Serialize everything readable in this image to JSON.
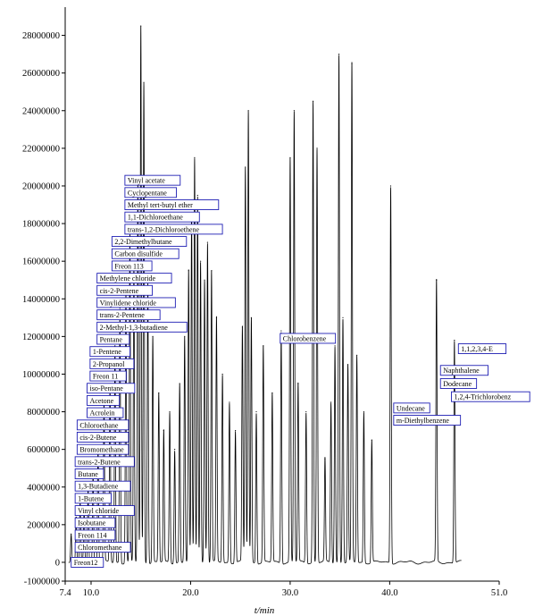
{
  "chart_data": {
    "type": "line",
    "title": "",
    "xlabel": "t/min",
    "ylabel": "",
    "xlim": [
      7.4,
      51.0
    ],
    "ylim": [
      -1000000,
      29500000
    ],
    "xticks": [
      "7.4",
      "10.0",
      "20.0",
      "30.0",
      "40.0",
      "51.0"
    ],
    "xtick_values": [
      7.4,
      10.0,
      20.0,
      30.0,
      40.0,
      51.0
    ],
    "yticks": [
      "-1000000",
      "0",
      "2000000",
      "4000000",
      "6000000",
      "8000000",
      "10000000",
      "12000000",
      "14000000",
      "16000000",
      "18000000",
      "20000000",
      "22000000",
      "24000000",
      "26000000",
      "28000000"
    ],
    "ytick_values": [
      -1000000,
      0,
      2000000,
      4000000,
      6000000,
      8000000,
      10000000,
      12000000,
      14000000,
      16000000,
      18000000,
      20000000,
      22000000,
      24000000,
      26000000,
      28000000
    ],
    "peaks": [
      {
        "t": 8.0,
        "h": 1500000
      },
      {
        "t": 8.5,
        "h": 2400000
      },
      {
        "t": 8.9,
        "h": 3200000
      },
      {
        "t": 9.3,
        "h": 2800000
      },
      {
        "t": 9.7,
        "h": 4000000
      },
      {
        "t": 10.2,
        "h": 4800000
      },
      {
        "t": 10.7,
        "h": 6200000
      },
      {
        "t": 11.3,
        "h": 8500000
      },
      {
        "t": 11.9,
        "h": 9500000
      },
      {
        "t": 12.4,
        "h": 11500000
      },
      {
        "t": 12.9,
        "h": 13500000
      },
      {
        "t": 13.5,
        "h": 14500000
      },
      {
        "t": 13.9,
        "h": 17500000
      },
      {
        "t": 14.3,
        "h": 16000000
      },
      {
        "t": 14.7,
        "h": 20000000
      },
      {
        "t": 15.0,
        "h": 28500000
      },
      {
        "t": 15.3,
        "h": 25500000
      },
      {
        "t": 15.7,
        "h": 15000000
      },
      {
        "t": 16.2,
        "h": 12000000
      },
      {
        "t": 16.8,
        "h": 9000000
      },
      {
        "t": 17.3,
        "h": 7000000
      },
      {
        "t": 17.9,
        "h": 8000000
      },
      {
        "t": 18.4,
        "h": 6000000
      },
      {
        "t": 18.9,
        "h": 9500000
      },
      {
        "t": 19.4,
        "h": 12000000
      },
      {
        "t": 19.8,
        "h": 15500000
      },
      {
        "t": 20.1,
        "h": 18500000
      },
      {
        "t": 20.4,
        "h": 21500000
      },
      {
        "t": 20.7,
        "h": 19500000
      },
      {
        "t": 21.0,
        "h": 16000000
      },
      {
        "t": 21.4,
        "h": 15000000
      },
      {
        "t": 21.7,
        "h": 17000000
      },
      {
        "t": 22.1,
        "h": 15500000
      },
      {
        "t": 22.6,
        "h": 13000000
      },
      {
        "t": 23.2,
        "h": 10000000
      },
      {
        "t": 23.9,
        "h": 8500000
      },
      {
        "t": 24.5,
        "h": 7000000
      },
      {
        "t": 25.2,
        "h": 12500000
      },
      {
        "t": 25.5,
        "h": 21000000
      },
      {
        "t": 25.8,
        "h": 24000000
      },
      {
        "t": 26.1,
        "h": 13000000
      },
      {
        "t": 26.6,
        "h": 8000000
      },
      {
        "t": 27.3,
        "h": 11500000
      },
      {
        "t": 28.2,
        "h": 9000000
      },
      {
        "t": 29.1,
        "h": 12300000
      },
      {
        "t": 30.0,
        "h": 21500000
      },
      {
        "t": 30.4,
        "h": 24000000
      },
      {
        "t": 30.8,
        "h": 9500000
      },
      {
        "t": 31.6,
        "h": 8000000
      },
      {
        "t": 32.3,
        "h": 24500000
      },
      {
        "t": 32.7,
        "h": 22000000
      },
      {
        "t": 33.5,
        "h": 5500000
      },
      {
        "t": 34.1,
        "h": 8500000
      },
      {
        "t": 34.5,
        "h": 11500000
      },
      {
        "t": 34.9,
        "h": 27000000
      },
      {
        "t": 35.3,
        "h": 13000000
      },
      {
        "t": 35.8,
        "h": 10500000
      },
      {
        "t": 36.2,
        "h": 26500000
      },
      {
        "t": 36.7,
        "h": 11000000
      },
      {
        "t": 37.4,
        "h": 8000000
      },
      {
        "t": 38.2,
        "h": 6500000
      },
      {
        "t": 40.1,
        "h": 20000000
      },
      {
        "t": 44.7,
        "h": 15000000
      },
      {
        "t": 46.5,
        "h": 11800000
      }
    ],
    "annotations": [
      {
        "label": "Freon12",
        "t": 8.0,
        "y": 0
      },
      {
        "label": "Chloromethane",
        "t": 8.4,
        "y": 800000
      },
      {
        "label": "Freon 114",
        "t": 8.4,
        "y": 1450000
      },
      {
        "label": "Isobutane",
        "t": 8.4,
        "y": 2100000
      },
      {
        "label": "Vinyl chloride",
        "t": 8.4,
        "y": 2750000
      },
      {
        "label": "1-Butene",
        "t": 8.4,
        "y": 3400000
      },
      {
        "label": "1,3-Butadiene",
        "t": 8.4,
        "y": 4050000
      },
      {
        "label": "Butane",
        "t": 8.4,
        "y": 4700000
      },
      {
        "label": "trans-2-Butene",
        "t": 8.4,
        "y": 5350000
      },
      {
        "label": "Bromomethane",
        "t": 8.6,
        "y": 6000000
      },
      {
        "label": "cis-2-Butene",
        "t": 8.6,
        "y": 6650000
      },
      {
        "label": "Chloroethane",
        "t": 8.6,
        "y": 7300000
      },
      {
        "label": "Acrolein",
        "t": 9.6,
        "y": 7950000
      },
      {
        "label": "Acetone",
        "t": 9.6,
        "y": 8600000
      },
      {
        "label": "iso-Pentane",
        "t": 9.6,
        "y": 9250000
      },
      {
        "label": "Freon 11",
        "t": 9.9,
        "y": 9900000
      },
      {
        "label": "2-Propanol",
        "t": 9.9,
        "y": 10550000
      },
      {
        "label": "1-Pentene",
        "t": 9.9,
        "y": 11200000
      },
      {
        "label": "Pentane",
        "t": 10.6,
        "y": 11850000
      },
      {
        "label": "2-Methyl-1,3-butadiene",
        "t": 10.6,
        "y": 12500000
      },
      {
        "label": "trans-2-Pentene",
        "t": 10.6,
        "y": 13150000
      },
      {
        "label": "Vinylidene chloride",
        "t": 10.6,
        "y": 13800000
      },
      {
        "label": "cis-2-Pentene",
        "t": 10.6,
        "y": 14450000
      },
      {
        "label": "Methylene chloride",
        "t": 10.6,
        "y": 15100000
      },
      {
        "label": "Freon 113",
        "t": 12.1,
        "y": 15750000
      },
      {
        "label": "Carbon disulfide",
        "t": 12.1,
        "y": 16400000
      },
      {
        "label": "2,2-Dimethylbutane",
        "t": 12.1,
        "y": 17050000
      },
      {
        "label": "trans-1,2-Dichloroethene",
        "t": 13.4,
        "y": 17700000
      },
      {
        "label": "1,1-Dichloroethane",
        "t": 13.4,
        "y": 18350000
      },
      {
        "label": "Methyl tert-butyl ether",
        "t": 13.4,
        "y": 19000000
      },
      {
        "label": "Cyclopentane",
        "t": 13.4,
        "y": 19650000
      },
      {
        "label": "Vinyl acetate",
        "t": 13.4,
        "y": 20300000
      },
      {
        "label": "Chlorobenzene",
        "t": 29.0,
        "y": 11900000
      },
      {
        "label": "1,1,2,3,4-E",
        "t": 46.9,
        "y": 11350000
      },
      {
        "label": "Naphthalene",
        "t": 45.1,
        "y": 10200000
      },
      {
        "label": "Dodecane",
        "t": 45.1,
        "y": 9500000
      },
      {
        "label": "1,2,4-Trichlorobenz",
        "t": 46.2,
        "y": 8800000
      },
      {
        "label": "Undecane",
        "t": 40.4,
        "y": 8200000
      },
      {
        "label": "m-Diethylbenzene",
        "t": 40.4,
        "y": 7550000
      }
    ]
  }
}
